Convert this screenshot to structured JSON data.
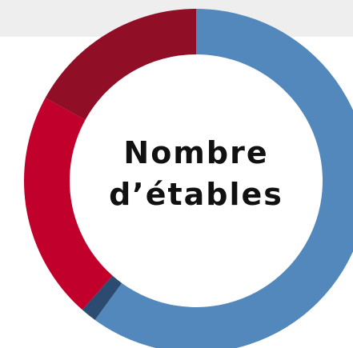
{
  "chart_data": {
    "type": "donut",
    "title": "Nombre d’étables",
    "categories": [
      null,
      null,
      null,
      null
    ],
    "values": [
      60,
      1.5,
      21.5,
      17
    ],
    "colors": [
      "#5288bb",
      "#2b4b70",
      "#c1002b",
      "#900f27"
    ]
  }
}
